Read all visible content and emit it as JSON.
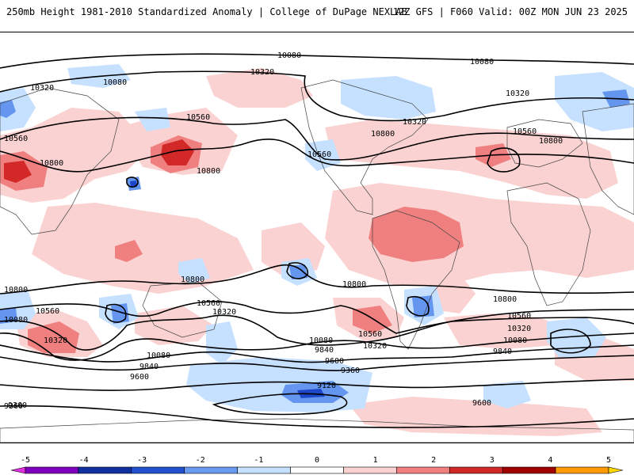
{
  "header": {
    "left_title": "250mb Height 1981-2010 Standardized Anomaly | College of DuPage NEXLAB",
    "right_title": "12Z GFS | F060 Valid: 00Z MON JUN 23 2025"
  },
  "map": {
    "contour_labels": [
      "10080",
      "10080",
      "10320",
      "10320",
      "10080",
      "10320",
      "10560",
      "10320",
      "10800",
      "10560",
      "10560",
      "10800",
      "10560",
      "10800",
      "10800",
      "10800",
      "10800",
      "10800",
      "10560",
      "10080",
      "10560",
      "10320",
      "10320",
      "10080",
      "9840",
      "9600",
      "9360",
      "9120",
      "10560",
      "10320",
      "10080",
      "9840",
      "9600",
      "9360",
      "10800",
      "10560",
      "10320",
      "10080",
      "9840",
      "9600",
      "9360"
    ],
    "anomaly_colors": {
      "neg1": "#c6e0ff",
      "neg2": "#6496f0",
      "neg3": "#1e46c8",
      "pos1": "#fbd2d2",
      "pos2": "#f08080",
      "pos3": "#d22828",
      "pos4": "#a00000"
    }
  },
  "legend": {
    "ticks": [
      "-5",
      "-4",
      "-3",
      "-2",
      "-1",
      "0",
      "1",
      "2",
      "3",
      "4",
      "5"
    ],
    "colors": [
      "#e030e0",
      "#8000c0",
      "#1030a0",
      "#2050d0",
      "#6a9af0",
      "#c6e0ff",
      "#ffffff",
      "#fbd2d2",
      "#f08080",
      "#d22828",
      "#a00000",
      "#ff9a00",
      "#ffd700"
    ]
  }
}
